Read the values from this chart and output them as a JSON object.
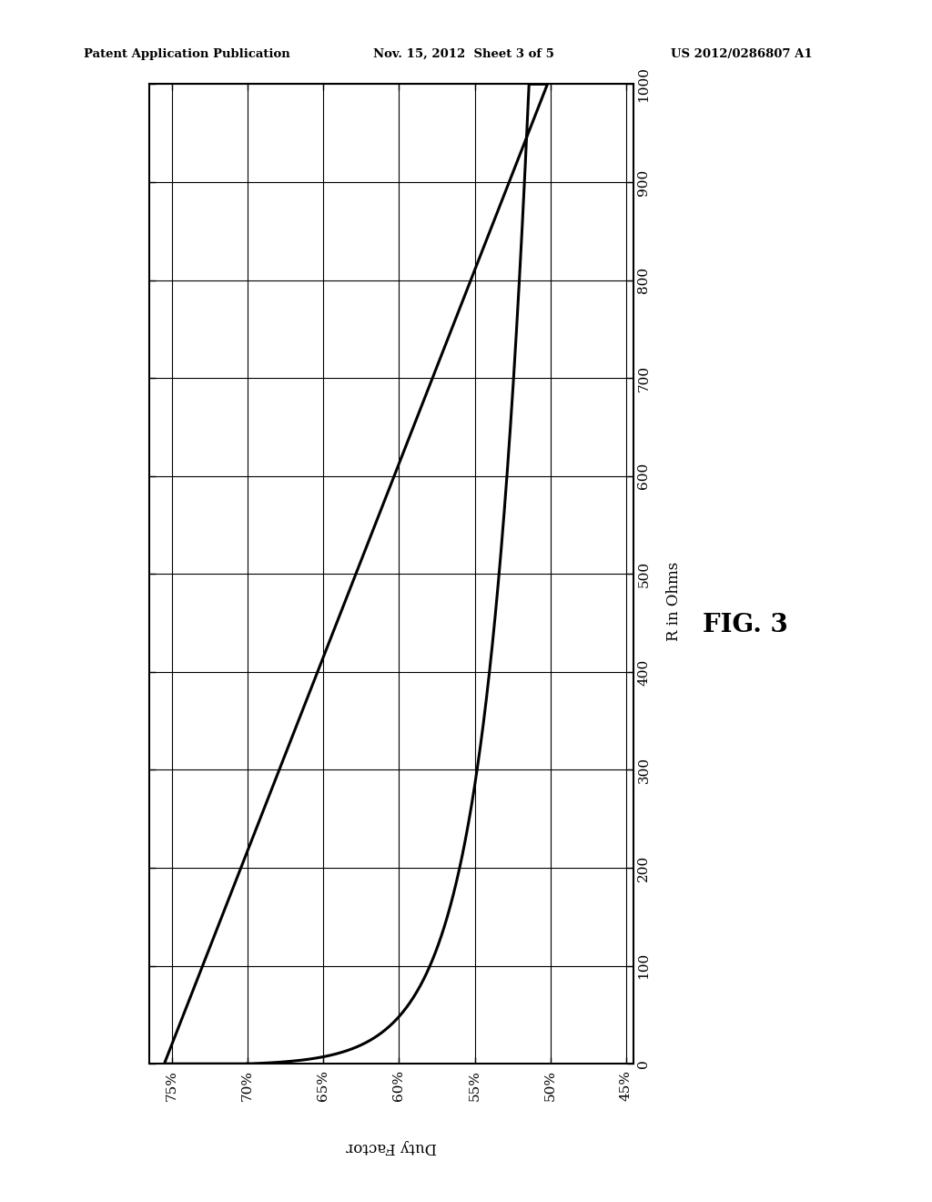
{
  "header_left": "Patent Application Publication",
  "header_mid": "Nov. 15, 2012  Sheet 3 of 5",
  "header_right": "US 2012/0286807 A1",
  "figure_label": "FIG. 3",
  "xlabel": "Duty Factor",
  "ylabel": "R in Ohms",
  "x_ticks": [
    0.75,
    0.7,
    0.65,
    0.6,
    0.55,
    0.5,
    0.45
  ],
  "x_tick_labels": [
    "75%",
    "70%",
    "65%",
    "60%",
    "55%",
    "50%",
    "45%"
  ],
  "y_ticks": [
    0,
    100,
    200,
    300,
    400,
    500,
    600,
    700,
    800,
    900,
    1000
  ],
  "xlim": [
    0.765,
    0.445
  ],
  "ylim": [
    0,
    1000
  ],
  "curve_color": "#000000",
  "background_color": "#ffffff",
  "grid_color": "#000000",
  "line_width": 2.2,
  "curve_A": 3.5,
  "curve_k": 22.0,
  "curve_D0": 0.7,
  "curve_Dmin": 0.502,
  "curve_Dmax": 0.755
}
